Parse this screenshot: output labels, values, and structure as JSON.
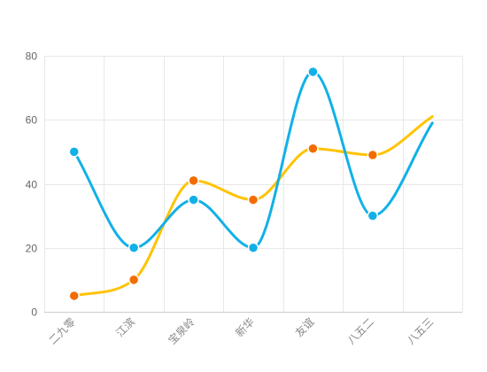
{
  "chart_data": {
    "type": "line",
    "smooth": true,
    "categories": [
      "二九零",
      "江滨",
      "宝泉岭",
      "新华",
      "友谊",
      "八五二",
      "八五三"
    ],
    "series": [
      {
        "color": "#FFC300",
        "marker_color": "#F26C00",
        "values": [
          5,
          10,
          41,
          35,
          51,
          49,
          61
        ]
      },
      {
        "color": "#12B0E8",
        "marker_color": "#12B0E8",
        "values": [
          50,
          20,
          35,
          20,
          75,
          30,
          59
        ]
      }
    ],
    "ylim": [
      0,
      80
    ],
    "yticks": [
      "0",
      "20",
      "40",
      "60",
      "80"
    ],
    "grid": true,
    "grid_color": "#e8e8e8",
    "title": "",
    "xlabel": "",
    "ylabel": ""
  }
}
